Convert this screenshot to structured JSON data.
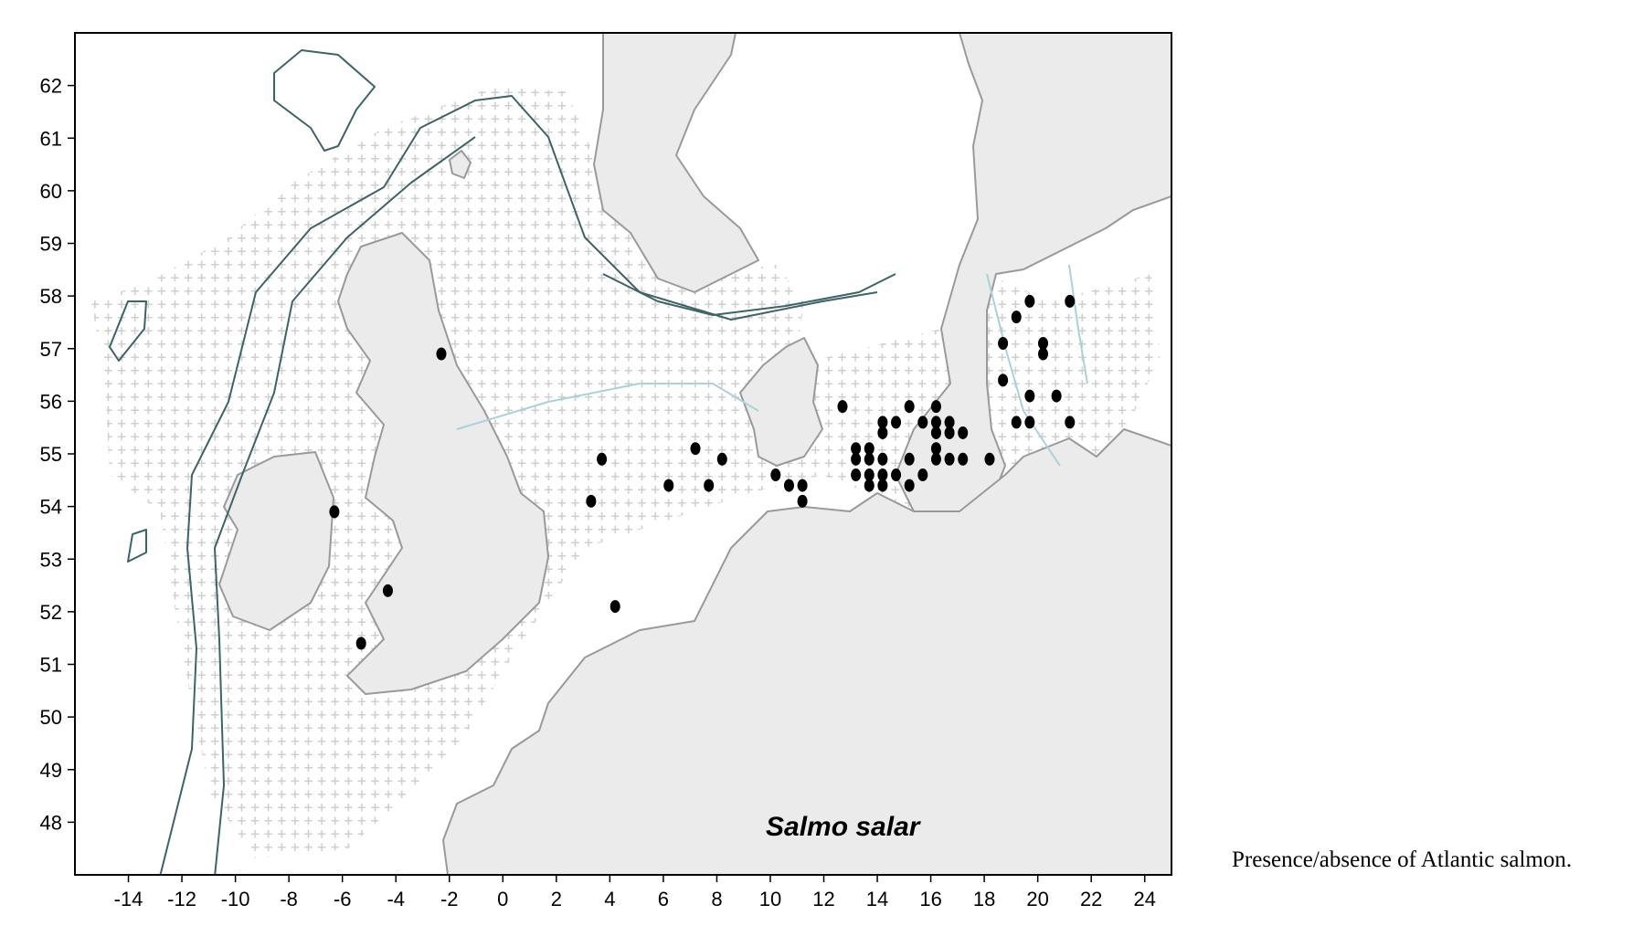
{
  "species_label": "Salmo salar",
  "caption": "Presence/absence of Atlantic salmon.",
  "colors": {
    "land": "#ebebeb",
    "coastline": "#9a9a9a",
    "depth_contour_dark": "#3d6467",
    "depth_contour_light": "#a9d3da",
    "absence_marker": "#cfcfcf",
    "presence_marker": "#000000"
  },
  "icons": {
    "absence": "plus-sign",
    "presence": "filled-dot"
  },
  "axes": {
    "x_ticks": [
      "-14",
      "-12",
      "-10",
      "-8",
      "-6",
      "-4",
      "-2",
      "0",
      "2",
      "4",
      "6",
      "8",
      "10",
      "12",
      "14",
      "16",
      "18",
      "20",
      "22",
      "24"
    ],
    "y_ticks": [
      "62",
      "61",
      "60",
      "59",
      "58",
      "57",
      "56",
      "55",
      "54",
      "53",
      "52",
      "51",
      "50",
      "49",
      "48"
    ],
    "x_range": [
      -16,
      25
    ],
    "y_range": [
      47,
      63
    ]
  },
  "chart_data": {
    "type": "scatter",
    "xlim": [
      -16,
      25
    ],
    "ylim": [
      47,
      63
    ],
    "presence_points": [
      [
        -2.3,
        56.9
      ],
      [
        -6.3,
        53.9
      ],
      [
        -4.3,
        52.4
      ],
      [
        -5.3,
        51.4
      ],
      [
        4.2,
        52.1
      ],
      [
        3.3,
        54.1
      ],
      [
        3.7,
        54.9
      ],
      [
        6.2,
        54.4
      ],
      [
        7.2,
        55.1
      ],
      [
        7.7,
        54.4
      ],
      [
        8.2,
        54.9
      ],
      [
        10.2,
        54.6
      ],
      [
        10.7,
        54.4
      ],
      [
        11.2,
        54.4
      ],
      [
        11.2,
        54.1
      ],
      [
        12.7,
        55.9
      ],
      [
        13.2,
        55.1
      ],
      [
        13.2,
        54.9
      ],
      [
        13.2,
        54.6
      ],
      [
        13.7,
        55.1
      ],
      [
        13.7,
        54.9
      ],
      [
        13.7,
        54.6
      ],
      [
        13.7,
        54.4
      ],
      [
        14.2,
        55.6
      ],
      [
        14.2,
        55.4
      ],
      [
        14.2,
        54.9
      ],
      [
        14.2,
        54.6
      ],
      [
        14.2,
        54.4
      ],
      [
        14.7,
        55.6
      ],
      [
        14.7,
        54.6
      ],
      [
        15.2,
        55.9
      ],
      [
        15.2,
        54.9
      ],
      [
        15.2,
        54.4
      ],
      [
        15.7,
        55.6
      ],
      [
        15.7,
        54.6
      ],
      [
        16.2,
        55.9
      ],
      [
        16.2,
        55.6
      ],
      [
        16.2,
        55.4
      ],
      [
        16.2,
        55.1
      ],
      [
        16.2,
        54.9
      ],
      [
        16.7,
        55.6
      ],
      [
        16.7,
        55.4
      ],
      [
        16.7,
        54.9
      ],
      [
        17.2,
        55.4
      ],
      [
        17.2,
        54.9
      ],
      [
        18.2,
        54.9
      ],
      [
        18.7,
        57.1
      ],
      [
        18.7,
        56.4
      ],
      [
        19.2,
        57.6
      ],
      [
        19.2,
        55.6
      ],
      [
        19.7,
        57.9
      ],
      [
        19.7,
        56.1
      ],
      [
        19.7,
        55.6
      ],
      [
        20.2,
        57.1
      ],
      [
        20.2,
        56.9
      ],
      [
        20.7,
        56.1
      ],
      [
        21.2,
        57.9
      ],
      [
        21.2,
        55.6
      ]
    ]
  }
}
